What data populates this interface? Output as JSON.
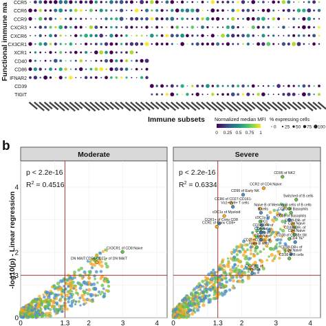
{
  "panel_a": {
    "y_axis_title": "Functional immune ma",
    "x_axis_title": "Immune subsets",
    "markers": [
      "CCR5",
      "CCR6",
      "CCR9",
      "CXCR3",
      "CXCR6",
      "CX3CR1",
      "XCR1",
      "CD40",
      "CD86",
      "IFNAR2",
      "CD39",
      "TIGIT"
    ],
    "legend_mfi_title": "Normalized median MFI",
    "legend_mfi_ticks": [
      "0",
      "0.25",
      "0.5",
      "0.75",
      "1"
    ],
    "legend_pct_title": "% expressing cells",
    "legend_pct_items": [
      "0",
      "25",
      "50",
      "75",
      "100"
    ]
  },
  "panel_b": {
    "panel_label": "b",
    "y_axis_title": "-log10(p) - Linear regression",
    "colors": {
      "green": "#6abd45",
      "orange": "#f5a623",
      "blue": "#4a90c9",
      "ref_line": "#a0342a",
      "strip": "#d9d9d9"
    },
    "facets": [
      {
        "name": "Moderate",
        "pvalue": "p < 2.2e-16",
        "r2": "R",
        "r2_sup": "2",
        "r2_value": " = 0.4516",
        "x_ticks": [
          "0",
          "1.3",
          "2",
          "3",
          "4"
        ],
        "labels": [
          {
            "text": "CX3CR1 of CD8:Naive",
            "x": 3.05,
            "y": 2.1
          },
          {
            "text": "DN MAIT:CD56-CD27+ of DN MAIT",
            "x": 2.3,
            "y": 1.78
          }
        ]
      },
      {
        "name": "Severe",
        "pvalue": "p < 2.2e-16",
        "r2": "R",
        "r2_sup": "2",
        "r2_value": " = 0.6334",
        "x_ticks": [
          "0",
          "1.3",
          "2",
          "3",
          "4"
        ],
        "labels": [
          {
            "text": "CD95 of NK2",
            "x": 3.25,
            "y": 4.4
          },
          {
            "text": "CCR2 of CD4:Naive",
            "x": 2.7,
            "y": 4.05
          },
          {
            "text": "CD95 of Early NK",
            "x": 2.1,
            "y": 3.85
          },
          {
            "text": "Switched of B cells",
            "x": 3.65,
            "y": 3.7
          },
          {
            "text": "CCR6 of CD27-CD161-",
            "x": 1.75,
            "y": 3.6
          },
          {
            "text": "Vα1+Vγ9+ T cells",
            "x": 1.8,
            "y": 3.48
          },
          {
            "text": "Memory B cells of B cells",
            "x": 3.45,
            "y": 3.42
          },
          {
            "text": "Naive B of",
            "x": 2.6,
            "y": 3.42
          },
          {
            "text": "B cells",
            "x": 2.62,
            "y": 3.3
          },
          {
            "text": "CCR3 of Basophils",
            "x": 3.5,
            "y": 3.3
          },
          {
            "text": "cDC1s of Myeloid",
            "x": 1.55,
            "y": 3.2
          },
          {
            "text": "CD38 of Basophils",
            "x": 3.45,
            "y": 3.08
          },
          {
            "text": "cDC1s of",
            "x": 2.6,
            "y": 3.03
          },
          {
            "text": "CD38-DR- of",
            "x": 3.55,
            "y": 2.95
          },
          {
            "text": "CCR1+ of Conv CD8",
            "x": 1.4,
            "y": 2.97
          },
          {
            "text": "CD4:Naive",
            "x": 3.6,
            "y": 2.85
          },
          {
            "text": "CCR1 of Conv CD8+",
            "x": 1.33,
            "y": 2.87
          },
          {
            "text": "DCs",
            "x": 2.65,
            "y": 2.92
          },
          {
            "text": "CD38-DR- of",
            "x": 2.62,
            "y": 2.8
          },
          {
            "text": "CD38+DR- of",
            "x": 3.55,
            "y": 2.73
          },
          {
            "text": "CD4:Naive",
            "x": 2.62,
            "y": 2.7
          },
          {
            "text": "CD4:Naive",
            "x": 3.6,
            "y": 2.63
          },
          {
            "text": "CD38 of",
            "x": 2.62,
            "y": 2.57
          },
          {
            "text": "CD4:Naive",
            "x": 2.62,
            "y": 2.47
          },
          {
            "text": "CD38 of CD38+ IM",
            "x": 3.45,
            "y": 2.5
          },
          {
            "text": "CD21+CD11c- of",
            "x": 2.45,
            "y": 2.35
          },
          {
            "text": "CD4 TE*",
            "x": 3.62,
            "y": 2.4
          },
          {
            "text": "naive B cells",
            "x": 2.5,
            "y": 2.24
          },
          {
            "text": "CD38-DR+ of",
            "x": 3.45,
            "y": 2.13
          },
          {
            "text": "CD4:Naive",
            "x": 3.5,
            "y": 2.03
          },
          {
            "text": "CD38 of B cells",
            "x": 3.45,
            "y": 1.9
          },
          {
            "text": "CX3CR1 of",
            "x": 2.35,
            "y": 1.55
          },
          {
            "text": "pmDCs",
            "x": 2.37,
            "y": 1.45
          }
        ]
      }
    ]
  }
}
